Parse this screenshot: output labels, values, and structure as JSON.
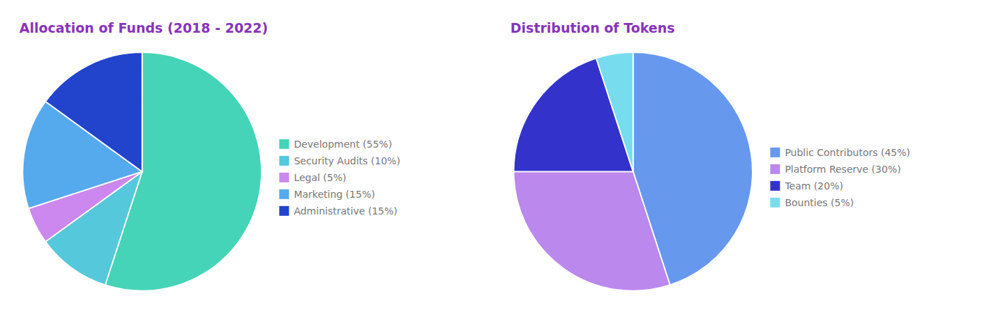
{
  "chart_data": [
    {
      "type": "pie",
      "title": "Allocation of Funds (2018 - 2022)",
      "categories": [
        "Development (55%)",
        "Security Audits (10%)",
        "Legal (5%)",
        "Marketing (15%)",
        "Administrative (15%)"
      ],
      "values": [
        55,
        10,
        5,
        15,
        15
      ],
      "colors": [
        "#45d4b8",
        "#55c8dc",
        "#cc88ee",
        "#55aaee",
        "#2244cc"
      ],
      "legend": "right"
    },
    {
      "type": "pie",
      "title": "Distribution of Tokens",
      "categories": [
        "Public Contributors (45%)",
        "Platform Reserve (30%)",
        "Team (20%)",
        "Bounties (5%)"
      ],
      "values": [
        45,
        30,
        20,
        5
      ],
      "colors": [
        "#6699ee",
        "#bb88ee",
        "#3333cc",
        "#77ddee"
      ],
      "legend": "right"
    }
  ]
}
